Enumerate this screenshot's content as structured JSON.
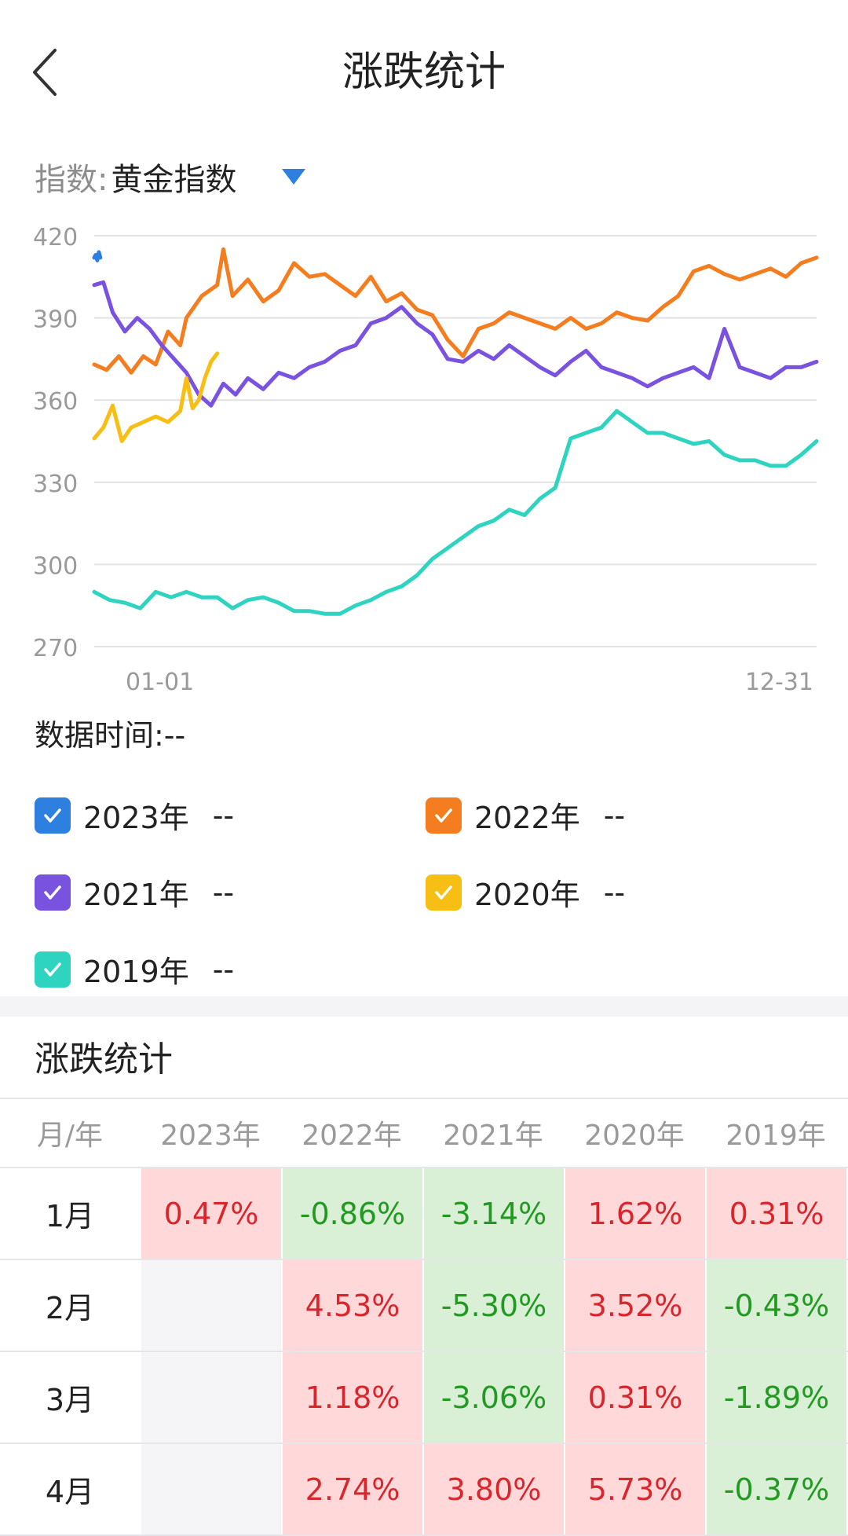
{
  "header": {
    "title": "涨跌统计"
  },
  "index": {
    "label": "指数:",
    "value": "黄金指数"
  },
  "chart_data": {
    "type": "line",
    "y_ticks": [
      "420",
      "390",
      "360",
      "330",
      "300",
      "270"
    ],
    "x_ticks": [
      "01-01",
      "12-31"
    ],
    "ylim": [
      270,
      420
    ],
    "series": [
      {
        "name": "2023年",
        "color": "#2d7fe0",
        "points": [
          [
            0.0,
            412
          ],
          [
            0.5,
            413
          ],
          [
            1.0,
            411
          ],
          [
            1.5,
            414
          ],
          [
            2.0,
            412
          ]
        ]
      },
      {
        "name": "2022年",
        "color": "#f47d20",
        "points": [
          [
            0,
            373
          ],
          [
            4,
            371
          ],
          [
            8,
            376
          ],
          [
            12,
            370
          ],
          [
            16,
            376
          ],
          [
            20,
            373
          ],
          [
            24,
            385
          ],
          [
            28,
            380
          ],
          [
            30,
            390
          ],
          [
            35,
            398
          ],
          [
            40,
            402
          ],
          [
            42,
            415
          ],
          [
            45,
            398
          ],
          [
            50,
            404
          ],
          [
            55,
            396
          ],
          [
            60,
            400
          ],
          [
            65,
            410
          ],
          [
            70,
            405
          ],
          [
            75,
            406
          ],
          [
            80,
            402
          ],
          [
            85,
            398
          ],
          [
            90,
            405
          ],
          [
            95,
            396
          ],
          [
            100,
            399
          ],
          [
            105,
            393
          ],
          [
            110,
            391
          ],
          [
            115,
            382
          ],
          [
            120,
            376
          ],
          [
            125,
            386
          ],
          [
            130,
            388
          ],
          [
            135,
            392
          ],
          [
            140,
            390
          ],
          [
            145,
            388
          ],
          [
            150,
            386
          ],
          [
            155,
            390
          ],
          [
            160,
            386
          ],
          [
            165,
            388
          ],
          [
            170,
            392
          ],
          [
            175,
            390
          ],
          [
            180,
            389
          ],
          [
            185,
            394
          ],
          [
            190,
            398
          ],
          [
            195,
            407
          ],
          [
            200,
            409
          ],
          [
            205,
            406
          ],
          [
            210,
            404
          ],
          [
            215,
            406
          ],
          [
            220,
            408
          ],
          [
            225,
            405
          ],
          [
            230,
            410
          ],
          [
            235,
            412
          ]
        ]
      },
      {
        "name": "2021年",
        "color": "#7a52e0",
        "points": [
          [
            0,
            402
          ],
          [
            3,
            403
          ],
          [
            6,
            392
          ],
          [
            10,
            385
          ],
          [
            14,
            390
          ],
          [
            18,
            386
          ],
          [
            22,
            380
          ],
          [
            26,
            375
          ],
          [
            30,
            370
          ],
          [
            34,
            362
          ],
          [
            38,
            358
          ],
          [
            42,
            366
          ],
          [
            46,
            362
          ],
          [
            50,
            368
          ],
          [
            55,
            364
          ],
          [
            60,
            370
          ],
          [
            65,
            368
          ],
          [
            70,
            372
          ],
          [
            75,
            374
          ],
          [
            80,
            378
          ],
          [
            85,
            380
          ],
          [
            90,
            388
          ],
          [
            95,
            390
          ],
          [
            100,
            394
          ],
          [
            105,
            388
          ],
          [
            110,
            384
          ],
          [
            115,
            375
          ],
          [
            120,
            374
          ],
          [
            125,
            378
          ],
          [
            130,
            375
          ],
          [
            135,
            380
          ],
          [
            140,
            376
          ],
          [
            145,
            372
          ],
          [
            150,
            369
          ],
          [
            155,
            374
          ],
          [
            160,
            378
          ],
          [
            165,
            372
          ],
          [
            170,
            370
          ],
          [
            175,
            368
          ],
          [
            180,
            365
          ],
          [
            185,
            368
          ],
          [
            190,
            370
          ],
          [
            195,
            372
          ],
          [
            200,
            368
          ],
          [
            205,
            386
          ],
          [
            210,
            372
          ],
          [
            215,
            370
          ],
          [
            220,
            368
          ],
          [
            225,
            372
          ],
          [
            230,
            372
          ],
          [
            235,
            374
          ]
        ]
      },
      {
        "name": "2020年",
        "color": "#f7be13",
        "points": [
          [
            0,
            346
          ],
          [
            3,
            350
          ],
          [
            6,
            358
          ],
          [
            9,
            345
          ],
          [
            12,
            350
          ],
          [
            16,
            352
          ],
          [
            20,
            354
          ],
          [
            24,
            352
          ],
          [
            28,
            356
          ],
          [
            30,
            368
          ],
          [
            32,
            357
          ],
          [
            34,
            360
          ],
          [
            36,
            368
          ],
          [
            38,
            374
          ],
          [
            40,
            377
          ]
        ]
      },
      {
        "name": "2019年",
        "color": "#2ed4c0",
        "points": [
          [
            0,
            290
          ],
          [
            5,
            287
          ],
          [
            10,
            286
          ],
          [
            15,
            284
          ],
          [
            20,
            290
          ],
          [
            25,
            288
          ],
          [
            30,
            290
          ],
          [
            35,
            288
          ],
          [
            40,
            288
          ],
          [
            45,
            284
          ],
          [
            50,
            287
          ],
          [
            55,
            288
          ],
          [
            60,
            286
          ],
          [
            65,
            283
          ],
          [
            70,
            283
          ],
          [
            75,
            282
          ],
          [
            80,
            282
          ],
          [
            85,
            285
          ],
          [
            90,
            287
          ],
          [
            95,
            290
          ],
          [
            100,
            292
          ],
          [
            105,
            296
          ],
          [
            110,
            302
          ],
          [
            115,
            306
          ],
          [
            120,
            310
          ],
          [
            125,
            314
          ],
          [
            130,
            316
          ],
          [
            135,
            320
          ],
          [
            140,
            318
          ],
          [
            145,
            324
          ],
          [
            150,
            328
          ],
          [
            155,
            346
          ],
          [
            160,
            348
          ],
          [
            165,
            350
          ],
          [
            170,
            356
          ],
          [
            175,
            352
          ],
          [
            180,
            348
          ],
          [
            185,
            348
          ],
          [
            190,
            346
          ],
          [
            195,
            344
          ],
          [
            200,
            345
          ],
          [
            205,
            340
          ],
          [
            210,
            338
          ],
          [
            215,
            338
          ],
          [
            220,
            336
          ],
          [
            225,
            336
          ],
          [
            230,
            340
          ],
          [
            235,
            345
          ]
        ]
      }
    ]
  },
  "data_time": "数据时间:--",
  "legend": [
    {
      "year": "2023年",
      "value": "--",
      "color": "#2d7fe0"
    },
    {
      "year": "2022年",
      "value": "--",
      "color": "#f47d20"
    },
    {
      "year": "2021年",
      "value": "--",
      "color": "#7a52e0"
    },
    {
      "year": "2020年",
      "value": "--",
      "color": "#f7be13"
    },
    {
      "year": "2019年",
      "value": "--",
      "color": "#2ed4c0"
    }
  ],
  "stats": {
    "title": "涨跌统计",
    "header": [
      "月/年",
      "2023年",
      "2022年",
      "2021年",
      "2020年",
      "2019年"
    ],
    "rows": [
      {
        "month": "1月",
        "cells": [
          "0.47%",
          "-0.86%",
          "-3.14%",
          "1.62%",
          "0.31%"
        ]
      },
      {
        "month": "2月",
        "cells": [
          "",
          "4.53%",
          "-5.30%",
          "3.52%",
          "-0.43%"
        ]
      },
      {
        "month": "3月",
        "cells": [
          "",
          "1.18%",
          "-3.06%",
          "0.31%",
          "-1.89%"
        ]
      },
      {
        "month": "4月",
        "cells": [
          "",
          "2.74%",
          "3.80%",
          "5.73%",
          "-0.37%"
        ]
      }
    ]
  }
}
